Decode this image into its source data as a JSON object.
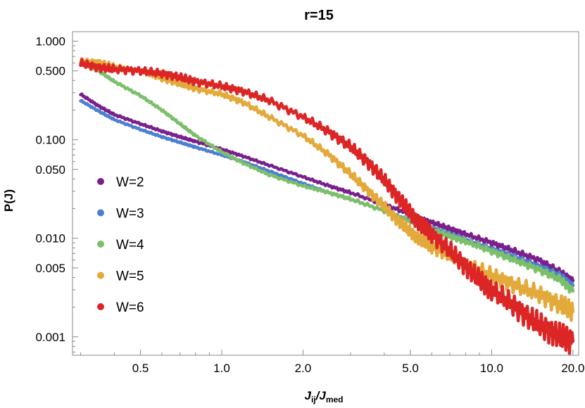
{
  "chart_data": {
    "type": "line",
    "title": "r=15",
    "xlabel": "J_ij/J_med",
    "xlabel_main": "J",
    "xlabel_sub1": "ij",
    "xlabel_slash": "/J",
    "xlabel_sub2": "med",
    "ylabel": "P(J)",
    "xscale": "log",
    "yscale": "log",
    "xlim": [
      0.28,
      21
    ],
    "ylim": [
      0.00065,
      1.25
    ],
    "grid": false,
    "legend_position": "left",
    "x_ticks": [
      {
        "value": 0.5,
        "label": "0.5"
      },
      {
        "value": 1.0,
        "label": "1.0"
      },
      {
        "value": 2.0,
        "label": "2.0"
      },
      {
        "value": 5.0,
        "label": "5.0"
      },
      {
        "value": 10.0,
        "label": "10.0"
      },
      {
        "value": 20.0,
        "label": "20.0"
      }
    ],
    "y_ticks": [
      {
        "value": 1.0,
        "label": "1.000"
      },
      {
        "value": 0.5,
        "label": "0.500"
      },
      {
        "value": 0.1,
        "label": "0.100"
      },
      {
        "value": 0.05,
        "label": "0.050"
      },
      {
        "value": 0.01,
        "label": "0.010"
      },
      {
        "value": 0.005,
        "label": "0.005"
      },
      {
        "value": 0.001,
        "label": "0.001"
      }
    ],
    "series": [
      {
        "name": "W=2",
        "color": "#7b1f8c",
        "points": [
          [
            0.3,
            0.29
          ],
          [
            0.35,
            0.22
          ],
          [
            0.4,
            0.18
          ],
          [
            0.5,
            0.145
          ],
          [
            0.6,
            0.122
          ],
          [
            0.7,
            0.107
          ],
          [
            0.8,
            0.096
          ],
          [
            1.0,
            0.08
          ],
          [
            1.2,
            0.068
          ],
          [
            1.5,
            0.055
          ],
          [
            2.0,
            0.042
          ],
          [
            2.5,
            0.034
          ],
          [
            3.0,
            0.029
          ],
          [
            4.0,
            0.022
          ],
          [
            5.0,
            0.0175
          ],
          [
            6.0,
            0.0145
          ],
          [
            7.0,
            0.0125
          ],
          [
            8.0,
            0.011
          ],
          [
            10.0,
            0.009
          ],
          [
            12.0,
            0.0075
          ],
          [
            15.0,
            0.006
          ],
          [
            18.0,
            0.0045
          ],
          [
            20.0,
            0.0037
          ]
        ]
      },
      {
        "name": "W=3",
        "color": "#4a7fd3",
        "points": [
          [
            0.3,
            0.25
          ],
          [
            0.35,
            0.195
          ],
          [
            0.4,
            0.16
          ],
          [
            0.5,
            0.127
          ],
          [
            0.6,
            0.107
          ],
          [
            0.7,
            0.094
          ],
          [
            0.8,
            0.084
          ],
          [
            1.0,
            0.07
          ],
          [
            1.2,
            0.06
          ],
          [
            1.5,
            0.048
          ],
          [
            2.0,
            0.036
          ],
          [
            2.5,
            0.029
          ],
          [
            3.0,
            0.025
          ],
          [
            4.0,
            0.019
          ],
          [
            5.0,
            0.0152
          ],
          [
            6.0,
            0.0128
          ],
          [
            7.0,
            0.011
          ],
          [
            8.0,
            0.0097
          ],
          [
            10.0,
            0.0078
          ],
          [
            12.0,
            0.0066
          ],
          [
            15.0,
            0.0052
          ],
          [
            18.0,
            0.0042
          ],
          [
            20.0,
            0.0033
          ]
        ]
      },
      {
        "name": "W=4",
        "color": "#7cbf6a",
        "points": [
          [
            0.3,
            0.6
          ],
          [
            0.35,
            0.5
          ],
          [
            0.4,
            0.39
          ],
          [
            0.5,
            0.28
          ],
          [
            0.6,
            0.2
          ],
          [
            0.7,
            0.145
          ],
          [
            0.8,
            0.11
          ],
          [
            1.0,
            0.075
          ],
          [
            1.2,
            0.058
          ],
          [
            1.5,
            0.044
          ],
          [
            2.0,
            0.034
          ],
          [
            2.5,
            0.029
          ],
          [
            3.0,
            0.025
          ],
          [
            4.0,
            0.019
          ],
          [
            5.0,
            0.0148
          ],
          [
            6.0,
            0.0122
          ],
          [
            7.0,
            0.0105
          ],
          [
            8.0,
            0.0093
          ],
          [
            10.0,
            0.0074
          ],
          [
            12.0,
            0.0061
          ],
          [
            15.0,
            0.0048
          ],
          [
            18.0,
            0.0038
          ],
          [
            20.0,
            0.0029
          ]
        ]
      },
      {
        "name": "W=5",
        "color": "#e3a93a",
        "points": [
          [
            0.3,
            0.62
          ],
          [
            0.35,
            0.61
          ],
          [
            0.4,
            0.55
          ],
          [
            0.5,
            0.5
          ],
          [
            0.6,
            0.42
          ],
          [
            0.7,
            0.37
          ],
          [
            0.8,
            0.33
          ],
          [
            1.0,
            0.29
          ],
          [
            1.2,
            0.24
          ],
          [
            1.5,
            0.17
          ],
          [
            2.0,
            0.11
          ],
          [
            2.5,
            0.07
          ],
          [
            3.0,
            0.045
          ],
          [
            3.5,
            0.03
          ],
          [
            4.0,
            0.021
          ],
          [
            4.5,
            0.015
          ],
          [
            5.0,
            0.0115
          ],
          [
            5.5,
            0.0095
          ],
          [
            6.0,
            0.0082
          ],
          [
            7.0,
            0.0067
          ],
          [
            8.0,
            0.0055
          ],
          [
            10.0,
            0.0042
          ],
          [
            12.0,
            0.0034
          ],
          [
            15.0,
            0.0027
          ],
          [
            18.0,
            0.0021
          ],
          [
            20.0,
            0.0018
          ]
        ]
      },
      {
        "name": "W=6",
        "color": "#dc2626",
        "points": [
          [
            0.3,
            0.6
          ],
          [
            0.35,
            0.54
          ],
          [
            0.4,
            0.52
          ],
          [
            0.5,
            0.5
          ],
          [
            0.6,
            0.47
          ],
          [
            0.7,
            0.43
          ],
          [
            0.8,
            0.39
          ],
          [
            1.0,
            0.35
          ],
          [
            1.2,
            0.31
          ],
          [
            1.5,
            0.25
          ],
          [
            2.0,
            0.17
          ],
          [
            2.5,
            0.12
          ],
          [
            3.0,
            0.085
          ],
          [
            3.5,
            0.058
          ],
          [
            4.0,
            0.039
          ],
          [
            4.5,
            0.026
          ],
          [
            5.0,
            0.018
          ],
          [
            5.5,
            0.0135
          ],
          [
            6.0,
            0.011
          ],
          [
            7.0,
            0.0075
          ],
          [
            8.0,
            0.0052
          ],
          [
            9.0,
            0.0038
          ],
          [
            10.0,
            0.003
          ],
          [
            12.0,
            0.0021
          ],
          [
            14.0,
            0.0015
          ],
          [
            16.0,
            0.0012
          ],
          [
            18.0,
            0.001
          ],
          [
            20.0,
            0.0009
          ]
        ]
      }
    ]
  }
}
